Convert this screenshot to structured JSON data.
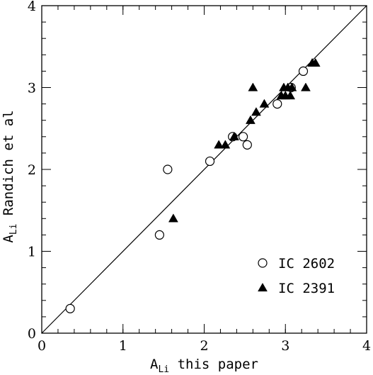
{
  "chart_data": {
    "type": "scatter",
    "title": "",
    "xlabel": {
      "base": "A",
      "sub": "Li",
      "rest": " this paper"
    },
    "ylabel": {
      "base": "A",
      "sub": "Li",
      "rest": " Randich et al"
    },
    "xlim": [
      0,
      4
    ],
    "ylim": [
      0,
      4
    ],
    "xticks": [
      "0",
      "1",
      "2",
      "3",
      "4"
    ],
    "yticks": [
      "0",
      "1",
      "2",
      "3",
      "4"
    ],
    "grid": false,
    "legend_position": "bottom-right",
    "reference_line": {
      "from": [
        0,
        0
      ],
      "to": [
        4,
        4
      ]
    },
    "series": [
      {
        "name": "IC 2602",
        "marker": "open-circle",
        "points": [
          [
            0.35,
            0.3
          ],
          [
            1.45,
            1.2
          ],
          [
            1.55,
            2.0
          ],
          [
            2.07,
            2.1
          ],
          [
            2.35,
            2.4
          ],
          [
            2.48,
            2.4
          ],
          [
            2.53,
            2.3
          ],
          [
            2.9,
            2.8
          ],
          [
            3.07,
            3.0
          ],
          [
            3.22,
            3.2
          ]
        ]
      },
      {
        "name": "IC 2391",
        "marker": "filled-triangle",
        "points": [
          [
            1.62,
            1.4
          ],
          [
            2.18,
            2.3
          ],
          [
            2.26,
            2.3
          ],
          [
            2.37,
            2.4
          ],
          [
            2.57,
            2.6
          ],
          [
            2.6,
            3.0
          ],
          [
            2.64,
            2.7
          ],
          [
            2.74,
            2.8
          ],
          [
            2.95,
            2.9
          ],
          [
            2.98,
            3.0
          ],
          [
            3.0,
            2.9
          ],
          [
            3.03,
            3.0
          ],
          [
            3.06,
            2.9
          ],
          [
            3.08,
            3.0
          ],
          [
            3.25,
            3.0
          ],
          [
            3.33,
            3.3
          ],
          [
            3.37,
            3.3
          ]
        ]
      }
    ]
  }
}
